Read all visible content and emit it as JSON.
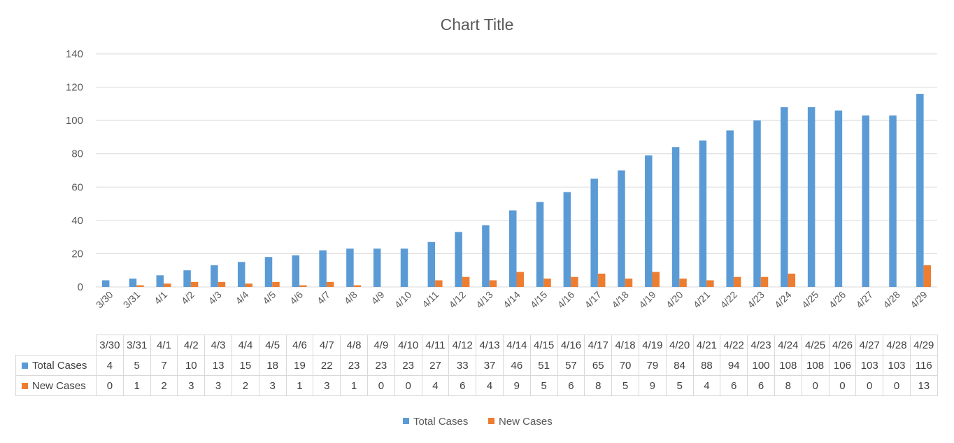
{
  "chart_data": {
    "type": "bar",
    "title": "Chart Title",
    "xlabel": "",
    "ylabel": "",
    "ylim": [
      0,
      140
    ],
    "yticks": [
      0,
      20,
      40,
      60,
      80,
      100,
      120,
      140
    ],
    "grid": true,
    "legend_position": "bottom",
    "categories": [
      "3/30",
      "3/31",
      "4/1",
      "4/2",
      "4/3",
      "4/4",
      "4/5",
      "4/6",
      "4/7",
      "4/8",
      "4/9",
      "4/10",
      "4/11",
      "4/12",
      "4/13",
      "4/14",
      "4/15",
      "4/16",
      "4/17",
      "4/18",
      "4/19",
      "4/20",
      "4/21",
      "4/22",
      "4/23",
      "4/24",
      "4/25",
      "4/26",
      "4/27",
      "4/28",
      "4/29"
    ],
    "series": [
      {
        "name": "Total Cases",
        "color": "#5b9bd5",
        "values": [
          4,
          5,
          7,
          10,
          13,
          15,
          18,
          19,
          22,
          23,
          23,
          23,
          27,
          33,
          37,
          46,
          51,
          57,
          65,
          70,
          79,
          84,
          88,
          94,
          100,
          108,
          108,
          106,
          103,
          103,
          116
        ]
      },
      {
        "name": "New Cases",
        "color": "#ed7d31",
        "values": [
          0,
          1,
          2,
          3,
          3,
          2,
          3,
          1,
          3,
          1,
          0,
          0,
          4,
          6,
          4,
          9,
          5,
          6,
          8,
          5,
          9,
          5,
          4,
          6,
          6,
          8,
          0,
          0,
          0,
          0,
          13
        ]
      }
    ]
  }
}
